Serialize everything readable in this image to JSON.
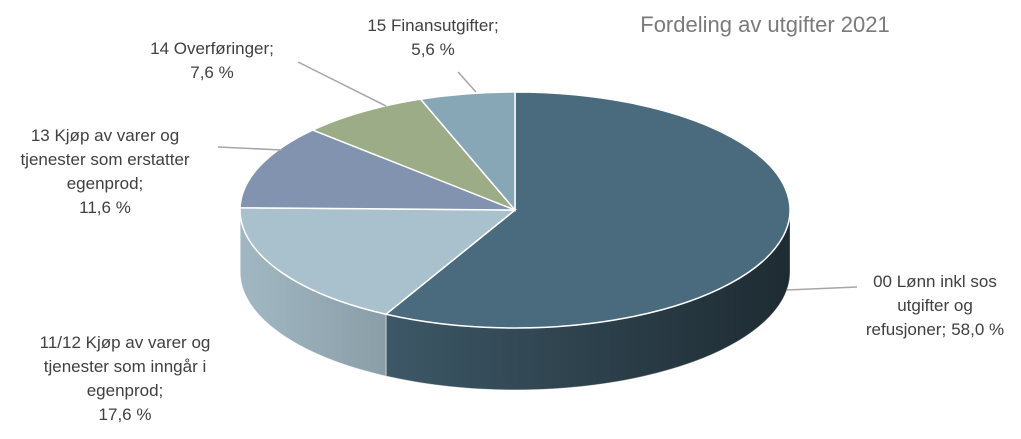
{
  "chart_data": {
    "type": "pie3d",
    "title": "Fordeling av utgifter 2021",
    "categories": [
      "00 Lønn inkl sos utgifter og refusjoner;",
      "11/12 Kjøp av varer og tjenester som inngår i egenprod;",
      "13 Kjøp av varer og tjenester som erstatter egenprod;",
      "14 Overføringer;",
      "15 Finansutgifter;"
    ],
    "values": [
      58.0,
      17.6,
      11.6,
      7.6,
      5.6
    ],
    "value_labels": [
      "58,0 %",
      "17,6 %",
      "11,6 %",
      "7,6 %",
      "5,6 %"
    ],
    "colors": [
      "#4a6b7d",
      "#a9c1cd",
      "#8193ae",
      "#9bac87",
      "#88a7b6"
    ]
  }
}
